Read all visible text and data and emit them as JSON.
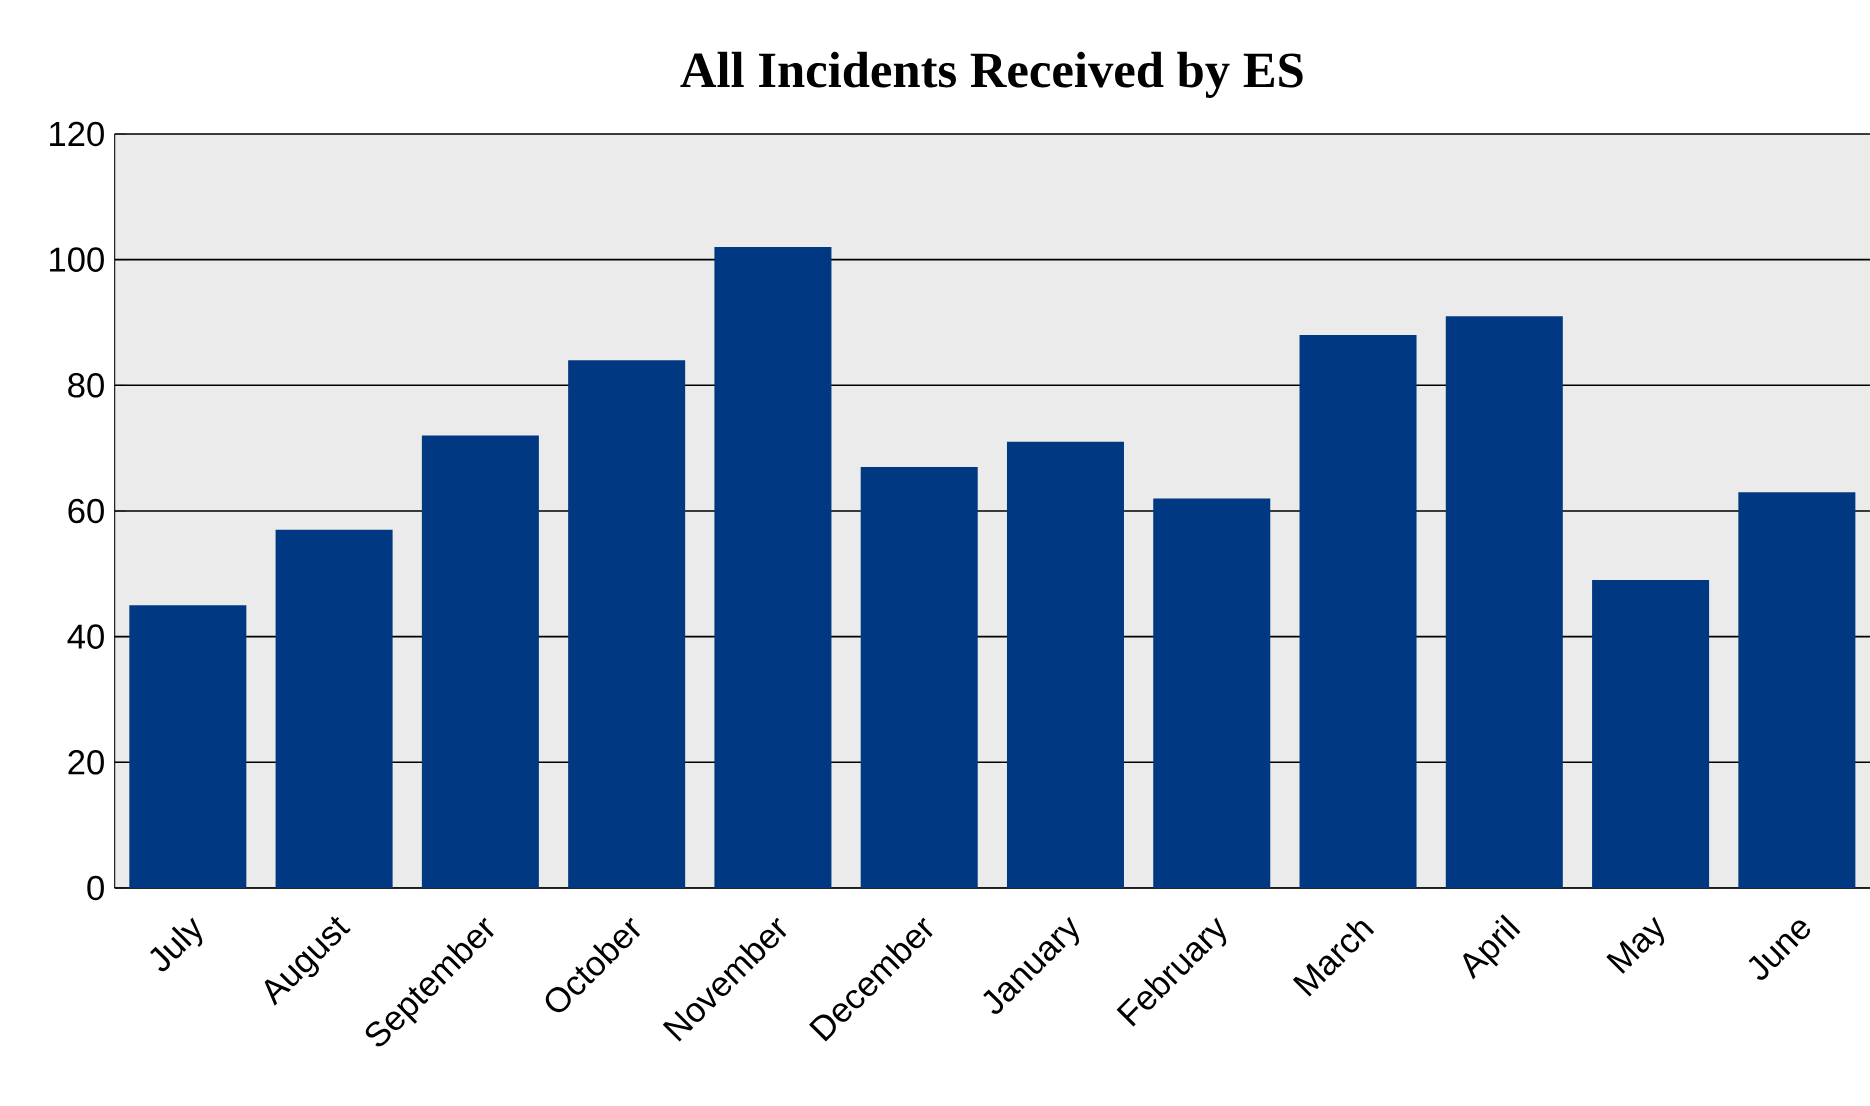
{
  "chart_data": {
    "type": "bar",
    "title": "All Incidents Received by ES",
    "categories": [
      "July",
      "August",
      "September",
      "October",
      "November",
      "December",
      "January",
      "February",
      "March",
      "April",
      "May",
      "June"
    ],
    "values": [
      45,
      57,
      72,
      84,
      102,
      67,
      71,
      62,
      88,
      91,
      49,
      63
    ],
    "color": "#003882",
    "ylim": [
      0,
      120
    ],
    "yticks": [
      0,
      20,
      40,
      60,
      80,
      100,
      120
    ],
    "grid": "y"
  }
}
